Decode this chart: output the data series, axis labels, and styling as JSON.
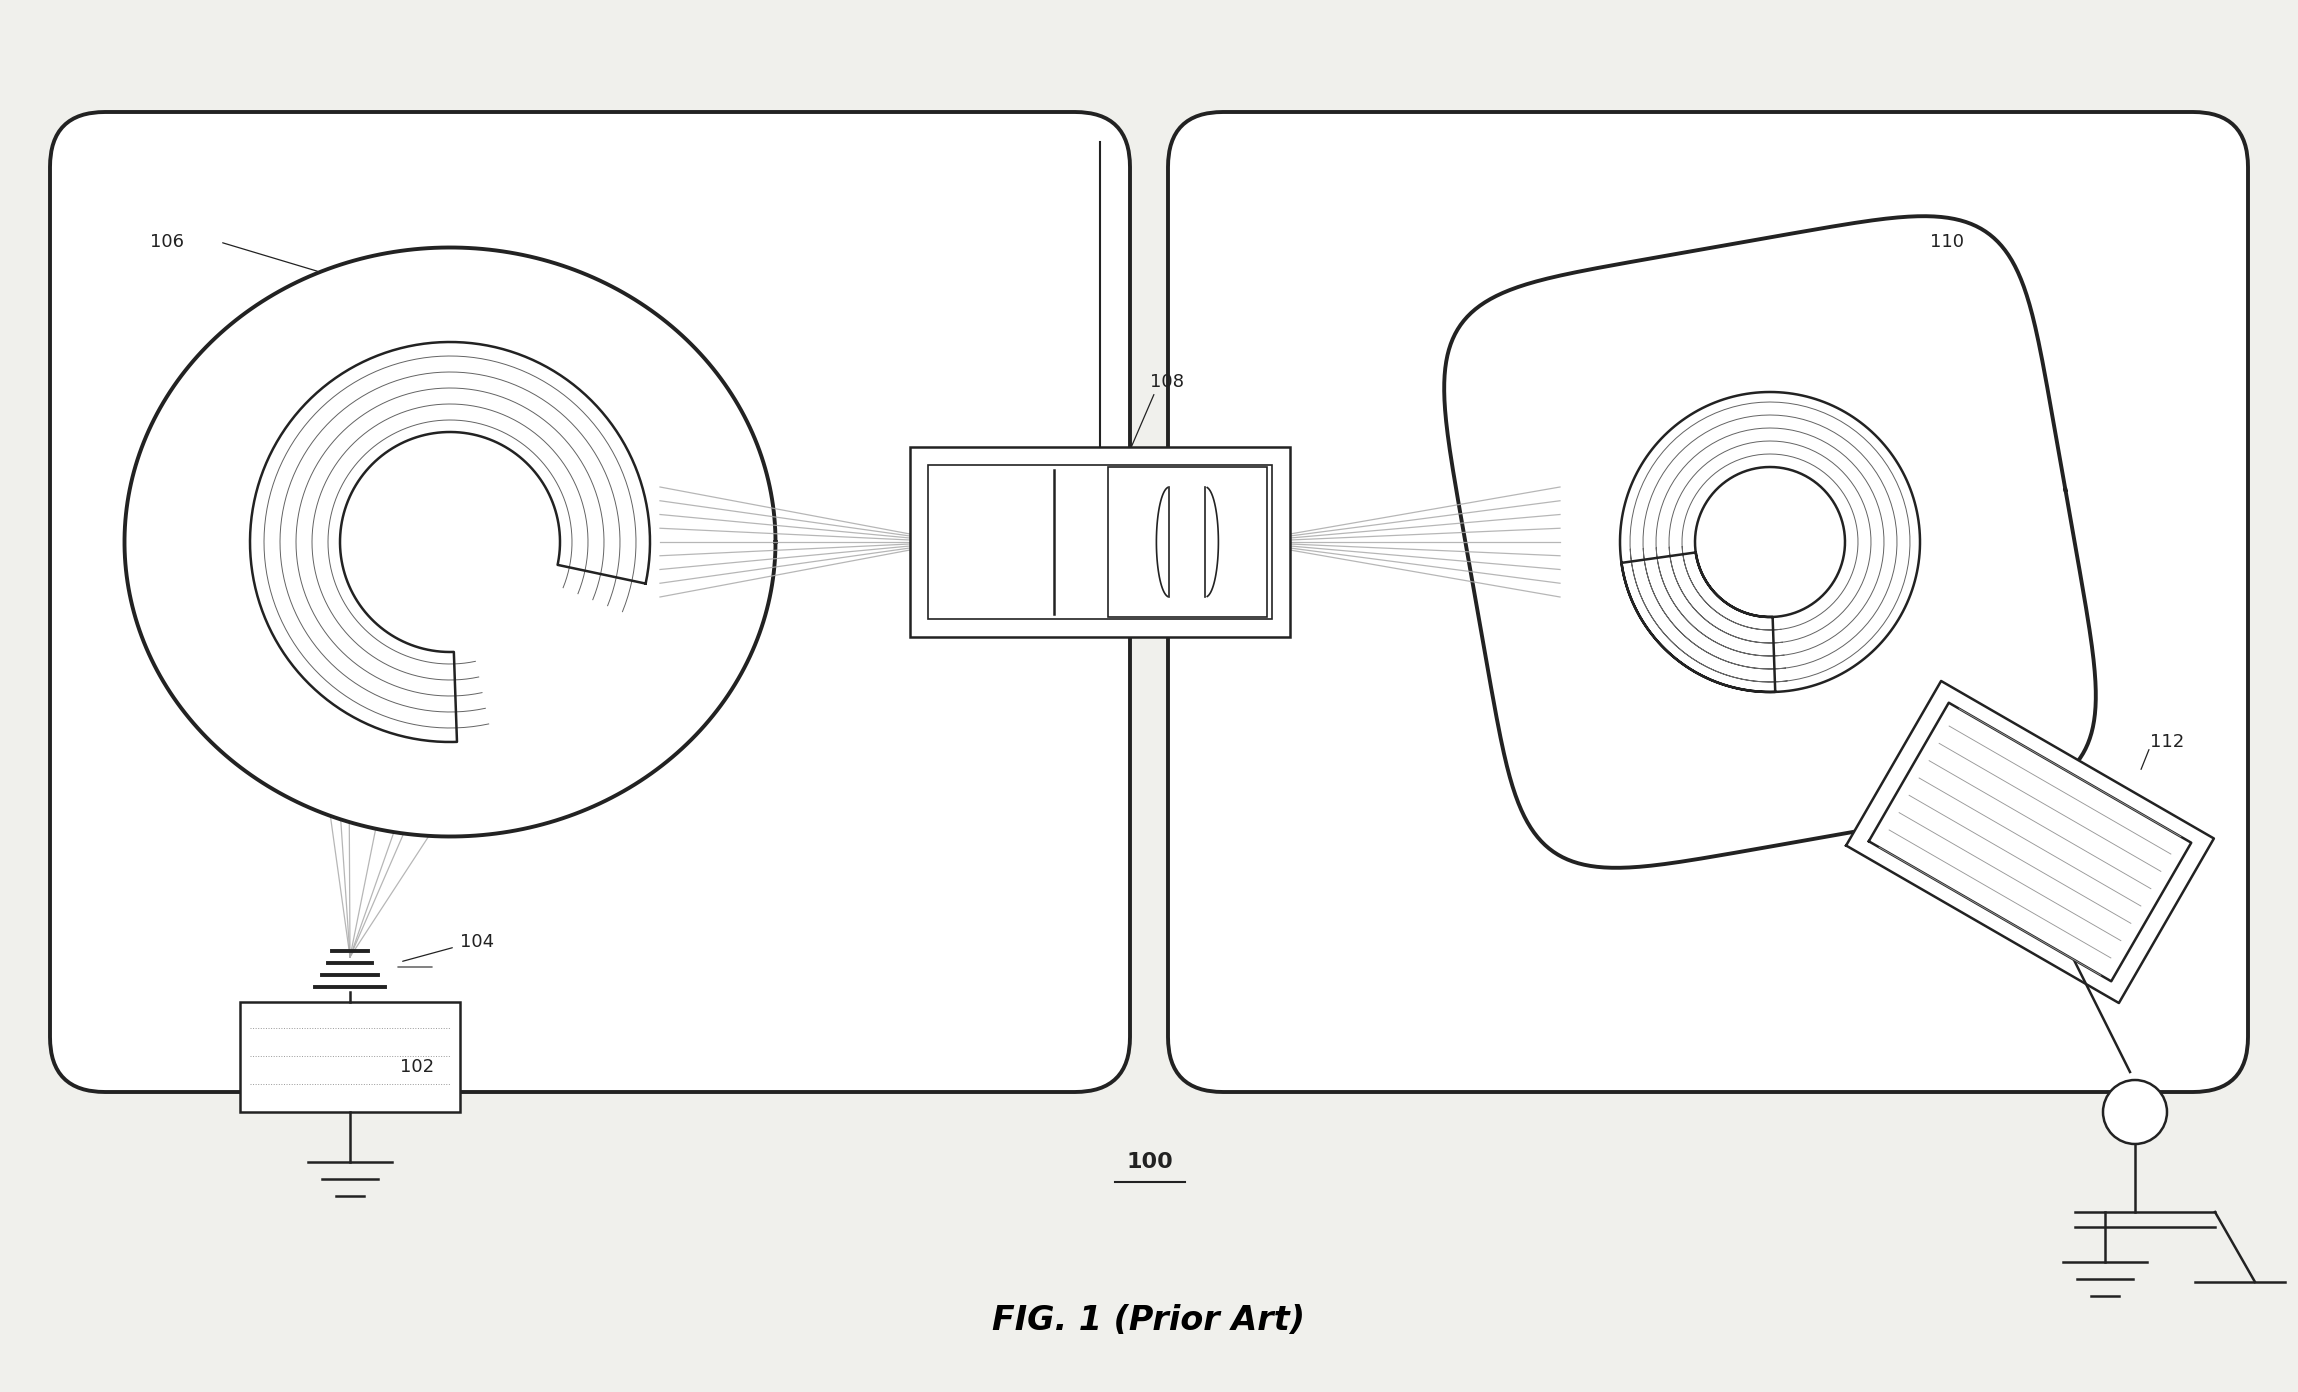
{
  "bg_color": "#f0f0ec",
  "line_color": "#222222",
  "light_line_color": "#999999",
  "beam_color": "#aaaaaa",
  "title": "FIG. 1 (Prior Art)",
  "label_100": "100",
  "label_102": "102",
  "label_104": "104",
  "label_106": "106",
  "label_108": "108",
  "label_110": "110",
  "label_112": "112",
  "fig_width": 22.98,
  "fig_height": 13.92,
  "dpi": 100
}
